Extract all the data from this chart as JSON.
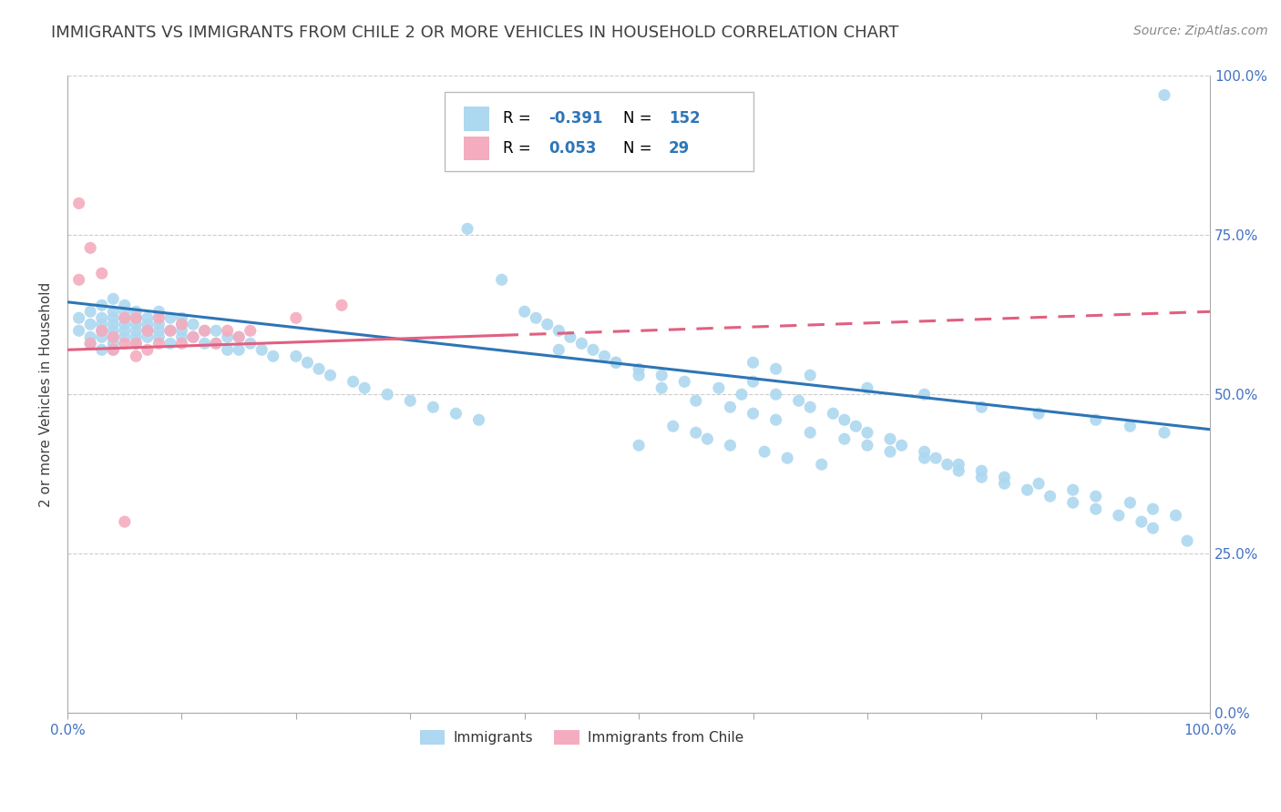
{
  "title": "IMMIGRANTS VS IMMIGRANTS FROM CHILE 2 OR MORE VEHICLES IN HOUSEHOLD CORRELATION CHART",
  "source": "Source: ZipAtlas.com",
  "ylabel": "2 or more Vehicles in Household",
  "xlim": [
    0.0,
    1.0
  ],
  "ylim": [
    0.0,
    1.0
  ],
  "blue_color": "#ADD8F0",
  "pink_color": "#F4ACBE",
  "blue_line_color": "#2E75B6",
  "pink_line_color": "#E06080",
  "title_color": "#404040",
  "axis_label_color": "#404040",
  "tick_label_color": "#4472C4",
  "grid_color": "#CCCCCC",
  "background_color": "#FFFFFF",
  "blue_scatter_x": [
    0.01,
    0.01,
    0.02,
    0.02,
    0.02,
    0.02,
    0.03,
    0.03,
    0.03,
    0.03,
    0.03,
    0.03,
    0.04,
    0.04,
    0.04,
    0.04,
    0.04,
    0.04,
    0.04,
    0.04,
    0.05,
    0.05,
    0.05,
    0.05,
    0.05,
    0.05,
    0.06,
    0.06,
    0.06,
    0.06,
    0.06,
    0.06,
    0.07,
    0.07,
    0.07,
    0.07,
    0.08,
    0.08,
    0.08,
    0.08,
    0.09,
    0.09,
    0.09,
    0.1,
    0.1,
    0.1,
    0.1,
    0.11,
    0.11,
    0.12,
    0.12,
    0.13,
    0.13,
    0.14,
    0.14,
    0.15,
    0.15,
    0.16,
    0.17,
    0.18,
    0.2,
    0.21,
    0.22,
    0.23,
    0.25,
    0.26,
    0.28,
    0.3,
    0.32,
    0.34,
    0.35,
    0.36,
    0.38,
    0.4,
    0.41,
    0.42,
    0.43,
    0.44,
    0.45,
    0.46,
    0.47,
    0.48,
    0.5,
    0.5,
    0.52,
    0.53,
    0.54,
    0.55,
    0.56,
    0.57,
    0.58,
    0.59,
    0.6,
    0.61,
    0.62,
    0.63,
    0.64,
    0.65,
    0.66,
    0.67,
    0.68,
    0.69,
    0.7,
    0.72,
    0.73,
    0.75,
    0.76,
    0.77,
    0.78,
    0.8,
    0.82,
    0.84,
    0.86,
    0.88,
    0.9,
    0.92,
    0.94,
    0.95,
    0.96,
    0.98,
    0.43,
    0.48,
    0.5,
    0.52,
    0.55,
    0.58,
    0.6,
    0.62,
    0.65,
    0.68,
    0.7,
    0.72,
    0.75,
    0.78,
    0.8,
    0.82,
    0.85,
    0.88,
    0.9,
    0.93,
    0.95,
    0.97,
    0.6,
    0.62,
    0.65,
    0.7,
    0.75,
    0.8,
    0.85,
    0.9,
    0.93,
    0.96
  ],
  "blue_scatter_y": [
    0.62,
    0.6,
    0.63,
    0.61,
    0.59,
    0.58,
    0.64,
    0.62,
    0.61,
    0.6,
    0.59,
    0.57,
    0.65,
    0.63,
    0.62,
    0.61,
    0.6,
    0.59,
    0.58,
    0.57,
    0.64,
    0.63,
    0.62,
    0.61,
    0.6,
    0.59,
    0.63,
    0.62,
    0.61,
    0.6,
    0.59,
    0.58,
    0.62,
    0.61,
    0.6,
    0.59,
    0.63,
    0.61,
    0.6,
    0.59,
    0.62,
    0.6,
    0.58,
    0.62,
    0.61,
    0.6,
    0.59,
    0.61,
    0.59,
    0.6,
    0.58,
    0.6,
    0.58,
    0.59,
    0.57,
    0.59,
    0.57,
    0.58,
    0.57,
    0.56,
    0.56,
    0.55,
    0.54,
    0.53,
    0.52,
    0.51,
    0.5,
    0.49,
    0.48,
    0.47,
    0.76,
    0.46,
    0.68,
    0.63,
    0.62,
    0.61,
    0.6,
    0.59,
    0.58,
    0.57,
    0.56,
    0.55,
    0.42,
    0.54,
    0.53,
    0.45,
    0.52,
    0.44,
    0.43,
    0.51,
    0.42,
    0.5,
    0.52,
    0.41,
    0.5,
    0.4,
    0.49,
    0.48,
    0.39,
    0.47,
    0.46,
    0.45,
    0.44,
    0.43,
    0.42,
    0.41,
    0.4,
    0.39,
    0.38,
    0.37,
    0.36,
    0.35,
    0.34,
    0.33,
    0.32,
    0.31,
    0.3,
    0.29,
    0.97,
    0.27,
    0.57,
    0.55,
    0.53,
    0.51,
    0.49,
    0.48,
    0.47,
    0.46,
    0.44,
    0.43,
    0.42,
    0.41,
    0.4,
    0.39,
    0.38,
    0.37,
    0.36,
    0.35,
    0.34,
    0.33,
    0.32,
    0.31,
    0.55,
    0.54,
    0.53,
    0.51,
    0.5,
    0.48,
    0.47,
    0.46,
    0.45,
    0.44
  ],
  "pink_scatter_x": [
    0.01,
    0.01,
    0.02,
    0.02,
    0.03,
    0.03,
    0.04,
    0.04,
    0.05,
    0.05,
    0.05,
    0.06,
    0.06,
    0.06,
    0.07,
    0.07,
    0.08,
    0.08,
    0.09,
    0.1,
    0.1,
    0.11,
    0.12,
    0.13,
    0.14,
    0.15,
    0.16,
    0.2,
    0.24
  ],
  "pink_scatter_y": [
    0.8,
    0.68,
    0.73,
    0.58,
    0.69,
    0.6,
    0.59,
    0.57,
    0.62,
    0.58,
    0.3,
    0.62,
    0.58,
    0.56,
    0.6,
    0.57,
    0.62,
    0.58,
    0.6,
    0.61,
    0.58,
    0.59,
    0.6,
    0.58,
    0.6,
    0.59,
    0.6,
    0.62,
    0.64
  ],
  "blue_trend_x0": 0.0,
  "blue_trend_x1": 1.0,
  "blue_trend_y0": 0.645,
  "blue_trend_y1": 0.445,
  "pink_trend_x0": 0.0,
  "pink_trend_x1": 1.0,
  "pink_trend_y0": 0.57,
  "pink_trend_y1": 0.63,
  "font_size_title": 13,
  "font_size_axis": 11,
  "font_size_tick": 11,
  "font_size_legend": 12,
  "font_size_source": 10
}
